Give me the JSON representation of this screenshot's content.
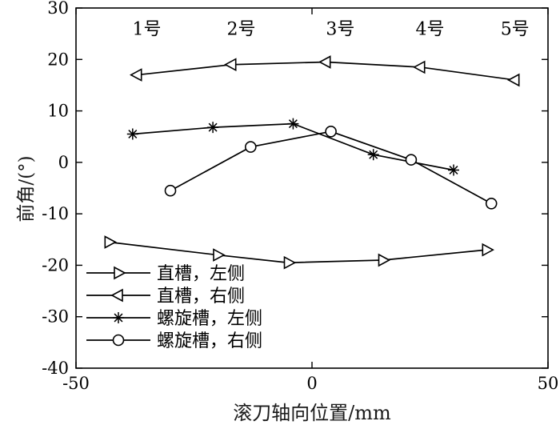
{
  "chart_data": {
    "type": "line",
    "title": "",
    "xlabel": "滚刀轴向位置/mm",
    "ylabel": "前角/(°)",
    "xlim": [
      -50,
      50
    ],
    "ylim": [
      -40,
      30
    ],
    "xticks": [
      -50,
      0,
      50
    ],
    "yticks": [
      -40,
      -30,
      -20,
      -10,
      0,
      10,
      20,
      30
    ],
    "grid": false,
    "legend_position": "lower-left",
    "line_color": "#000000",
    "background": "#ffffff",
    "annotations": [
      {
        "text": "1号",
        "x": -35,
        "y": 26
      },
      {
        "text": "2号",
        "x": -15,
        "y": 26
      },
      {
        "text": "3号",
        "x": 6,
        "y": 26
      },
      {
        "text": "4号",
        "x": 25,
        "y": 26
      },
      {
        "text": "5号",
        "x": 43,
        "y": 26
      }
    ],
    "series": [
      {
        "name": "直槽，左侧",
        "marker": "triangle-right",
        "x": [
          -43,
          -20,
          -5,
          15,
          37
        ],
        "y": [
          -15.5,
          -18,
          -19.5,
          -19,
          -17
        ]
      },
      {
        "name": "直槽，右侧",
        "marker": "triangle-left",
        "x": [
          -37,
          -17,
          3,
          23,
          43
        ],
        "y": [
          17,
          19,
          19.5,
          18.5,
          16
        ]
      },
      {
        "name": "螺旋槽，左侧",
        "marker": "asterisk",
        "x": [
          -38,
          -21,
          -4,
          13,
          30
        ],
        "y": [
          5.5,
          6.8,
          7.5,
          1.5,
          -1.5
        ]
      },
      {
        "name": "螺旋槽，右侧",
        "marker": "circle",
        "x": [
          -30,
          -13,
          4,
          21,
          38
        ],
        "y": [
          -5.5,
          3,
          6,
          0.5,
          -8
        ]
      }
    ]
  }
}
